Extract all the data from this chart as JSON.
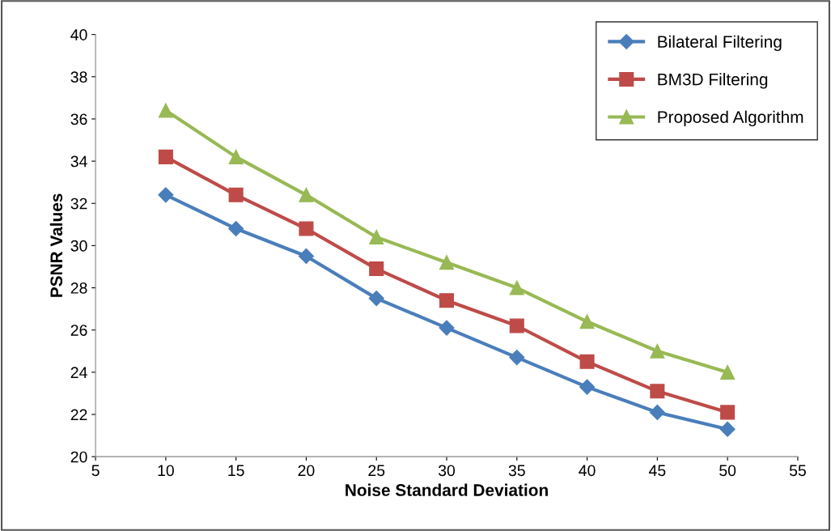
{
  "chart_data": {
    "type": "line",
    "xlabel": "Noise Standard Deviation",
    "ylabel": "PSNR Values",
    "x": [
      10,
      15,
      20,
      25,
      30,
      35,
      40,
      45,
      50
    ],
    "series": [
      {
        "name": "Bilateral Filtering",
        "color": "#4a7ebb",
        "marker": "diamond",
        "values": [
          32.4,
          30.8,
          29.5,
          27.5,
          26.1,
          24.7,
          23.3,
          22.1,
          21.3
        ]
      },
      {
        "name": "BM3D Filtering",
        "color": "#be4b48",
        "marker": "square",
        "values": [
          34.2,
          32.4,
          30.8,
          28.9,
          27.4,
          26.2,
          24.5,
          23.1,
          22.1
        ]
      },
      {
        "name": "Proposed Algorithm",
        "color": "#98b954",
        "marker": "triangle",
        "values": [
          36.4,
          34.2,
          32.4,
          30.4,
          29.2,
          28.0,
          26.4,
          25.0,
          24.0
        ]
      }
    ],
    "xlim": [
      5,
      55
    ],
    "xticks": [
      5,
      10,
      15,
      20,
      25,
      30,
      35,
      40,
      45,
      50,
      55
    ],
    "ylim": [
      20,
      40
    ],
    "yticks": [
      20,
      22,
      24,
      26,
      28,
      30,
      32,
      34,
      36,
      38,
      40
    ],
    "grid": false,
    "legend": "top right",
    "line_style": "solid"
  }
}
